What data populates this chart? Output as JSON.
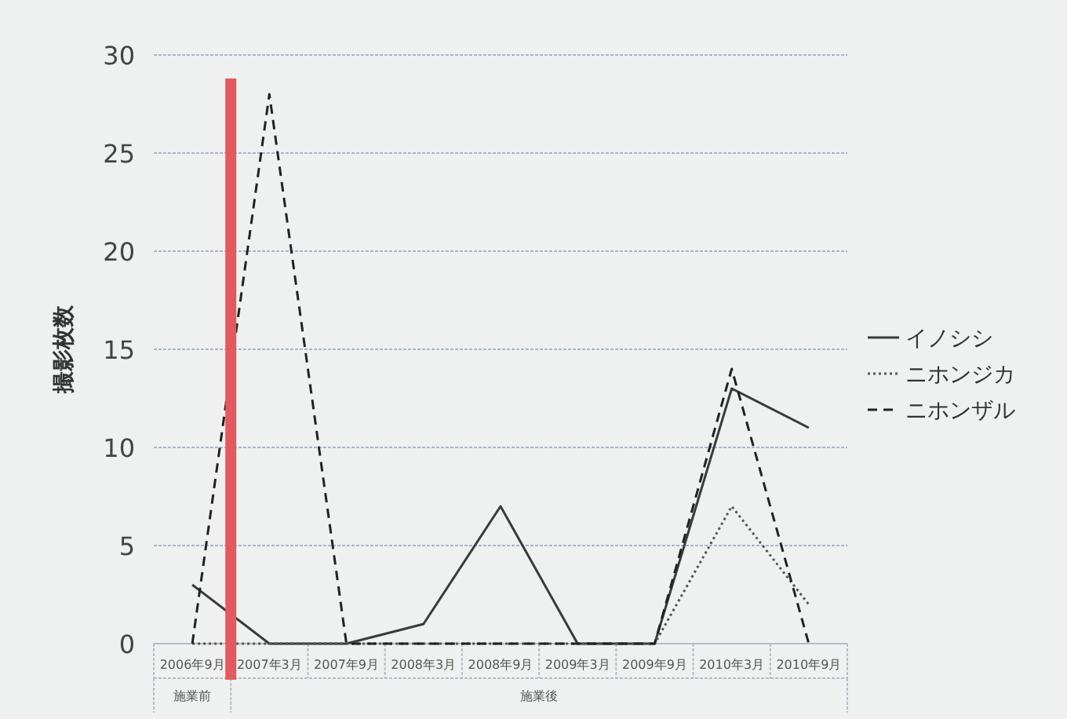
{
  "chart_data": {
    "type": "line",
    "ylabel": "撮影枚数",
    "categories": [
      "2006年9月",
      "2007年3月",
      "2007年9月",
      "2008年3月",
      "2008年9月",
      "2009年3月",
      "2009年9月",
      "2010年3月",
      "2010年9月"
    ],
    "series": [
      {
        "name": "イノシシ",
        "color": "#3a3a3a",
        "line_style": "solid",
        "values": [
          3,
          0,
          0,
          1,
          7,
          0,
          0,
          13,
          11
        ]
      },
      {
        "name": "ニホンジカ",
        "color": "#555555",
        "line_style": "dotted",
        "values": [
          0,
          0,
          0,
          0,
          0,
          0,
          0,
          7,
          2
        ]
      },
      {
        "name": "ニホンザル",
        "color": "#222222",
        "line_style": "dashed",
        "values": [
          0,
          28,
          0,
          0,
          0,
          0,
          0,
          14,
          0
        ]
      }
    ],
    "ylim": [
      0,
      30
    ],
    "yticks": [
      0,
      5,
      10,
      15,
      20,
      25,
      30
    ],
    "grid": "y",
    "legend": "right",
    "marker": "none",
    "ref_lines": [
      {
        "axis": "x",
        "value": "2006年9月",
        "color": "#e05a5f"
      }
    ],
    "annotations": [
      "施業前",
      "施業後"
    ]
  }
}
